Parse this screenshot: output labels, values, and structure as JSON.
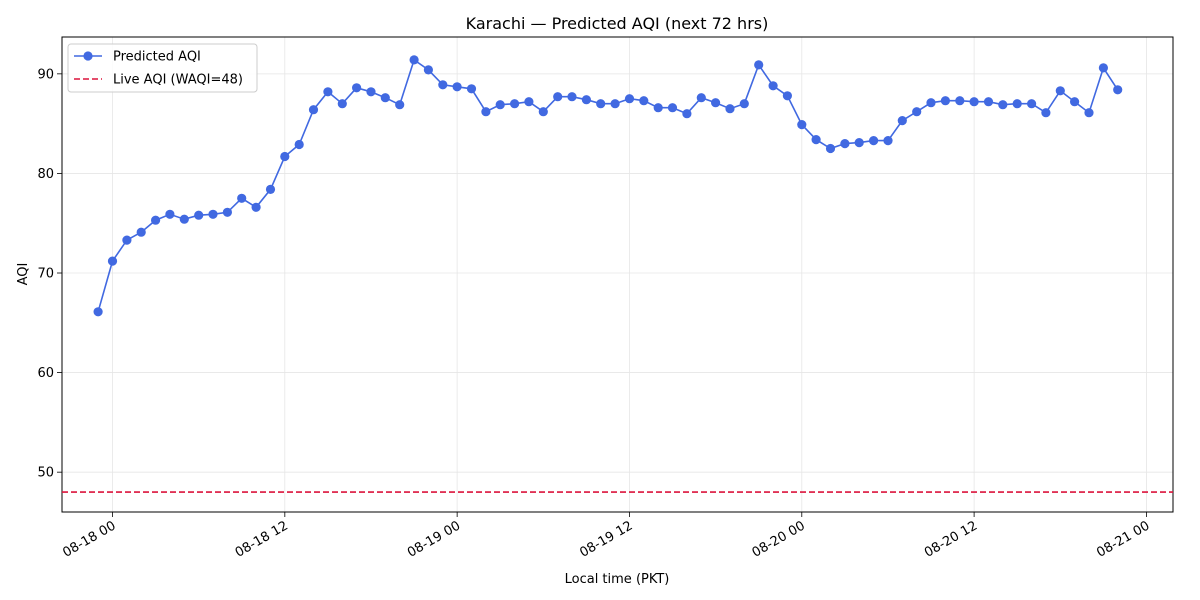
{
  "chart_data": {
    "type": "line",
    "title": "Karachi — Predicted AQI (next 72 hrs)",
    "xlabel": "Local time (PKT)",
    "ylabel": "AQI",
    "x_axis": {
      "kind": "datetime",
      "range": [
        "2024-08-17 20:29",
        "2024-08-21 01:51"
      ],
      "ticks": [
        {
          "value": "2024-08-18 00:00",
          "label": "08-18 00"
        },
        {
          "value": "2024-08-18 12:00",
          "label": "08-18 12"
        },
        {
          "value": "2024-08-19 00:00",
          "label": "08-19 00"
        },
        {
          "value": "2024-08-19 12:00",
          "label": "08-19 12"
        },
        {
          "value": "2024-08-20 00:00",
          "label": "08-20 00"
        },
        {
          "value": "2024-08-20 12:00",
          "label": "08-20 12"
        },
        {
          "value": "2024-08-21 00:00",
          "label": "08-21 00"
        }
      ]
    },
    "y_axis": {
      "range": [
        46.0,
        93.7
      ],
      "ticks": [
        50,
        60,
        70,
        80,
        90
      ]
    },
    "grid": true,
    "legend_position": "top-left",
    "series": [
      {
        "name": "Predicted AQI",
        "color": "#4169e1",
        "marker": "circle",
        "start": "2024-08-17 23:00",
        "step_hours": 1,
        "x": [
          "2024-08-17 23:00",
          "2024-08-18 00:00",
          "2024-08-18 01:00",
          "2024-08-18 02:00",
          "2024-08-18 03:00",
          "2024-08-18 04:00",
          "2024-08-18 05:00",
          "2024-08-18 06:00",
          "2024-08-18 07:00",
          "2024-08-18 08:00",
          "2024-08-18 09:00",
          "2024-08-18 10:00",
          "2024-08-18 11:00",
          "2024-08-18 12:00",
          "2024-08-18 13:00",
          "2024-08-18 14:00",
          "2024-08-18 15:00",
          "2024-08-18 16:00",
          "2024-08-18 17:00",
          "2024-08-18 18:00",
          "2024-08-18 19:00",
          "2024-08-18 20:00",
          "2024-08-18 21:00",
          "2024-08-18 22:00",
          "2024-08-18 23:00",
          "2024-08-19 00:00",
          "2024-08-19 01:00",
          "2024-08-19 02:00",
          "2024-08-19 03:00",
          "2024-08-19 04:00",
          "2024-08-19 05:00",
          "2024-08-19 06:00",
          "2024-08-19 07:00",
          "2024-08-19 08:00",
          "2024-08-19 09:00",
          "2024-08-19 10:00",
          "2024-08-19 11:00",
          "2024-08-19 12:00",
          "2024-08-19 13:00",
          "2024-08-19 14:00",
          "2024-08-19 15:00",
          "2024-08-19 16:00",
          "2024-08-19 17:00",
          "2024-08-19 18:00",
          "2024-08-19 19:00",
          "2024-08-19 20:00",
          "2024-08-19 21:00",
          "2024-08-19 22:00",
          "2024-08-19 23:00",
          "2024-08-20 00:00",
          "2024-08-20 01:00",
          "2024-08-20 02:00",
          "2024-08-20 03:00",
          "2024-08-20 04:00",
          "2024-08-20 05:00",
          "2024-08-20 06:00",
          "2024-08-20 07:00",
          "2024-08-20 08:00",
          "2024-08-20 09:00",
          "2024-08-20 10:00",
          "2024-08-20 11:00",
          "2024-08-20 12:00",
          "2024-08-20 13:00",
          "2024-08-20 14:00",
          "2024-08-20 15:00",
          "2024-08-20 16:00",
          "2024-08-20 17:00",
          "2024-08-20 18:00",
          "2024-08-20 19:00",
          "2024-08-20 20:00",
          "2024-08-20 21:00",
          "2024-08-20 22:00"
        ],
        "values": [
          66.1,
          71.2,
          73.3,
          74.1,
          75.3,
          75.9,
          75.4,
          75.8,
          75.9,
          76.1,
          77.5,
          76.6,
          78.4,
          81.7,
          82.9,
          86.4,
          88.2,
          87.0,
          88.6,
          88.2,
          87.6,
          86.9,
          91.4,
          90.4,
          88.9,
          88.7,
          88.5,
          86.2,
          86.9,
          87.0,
          87.2,
          86.2,
          87.7,
          87.7,
          87.4,
          87.0,
          87.0,
          87.5,
          87.3,
          86.6,
          86.6,
          86.0,
          87.6,
          87.1,
          86.5,
          87.0,
          90.9,
          88.8,
          87.8,
          84.9,
          83.4,
          82.5,
          83.0,
          83.1,
          83.3,
          83.3,
          85.3,
          86.2,
          87.1,
          87.3,
          87.3,
          87.2,
          87.2,
          86.9,
          87.0,
          87.0,
          86.1,
          88.3,
          87.2,
          86.1,
          90.6,
          88.4
        ]
      },
      {
        "name": "Live AQI (WAQI=48)",
        "color": "#dc143c",
        "style": "dashed",
        "value": 48
      }
    ]
  }
}
